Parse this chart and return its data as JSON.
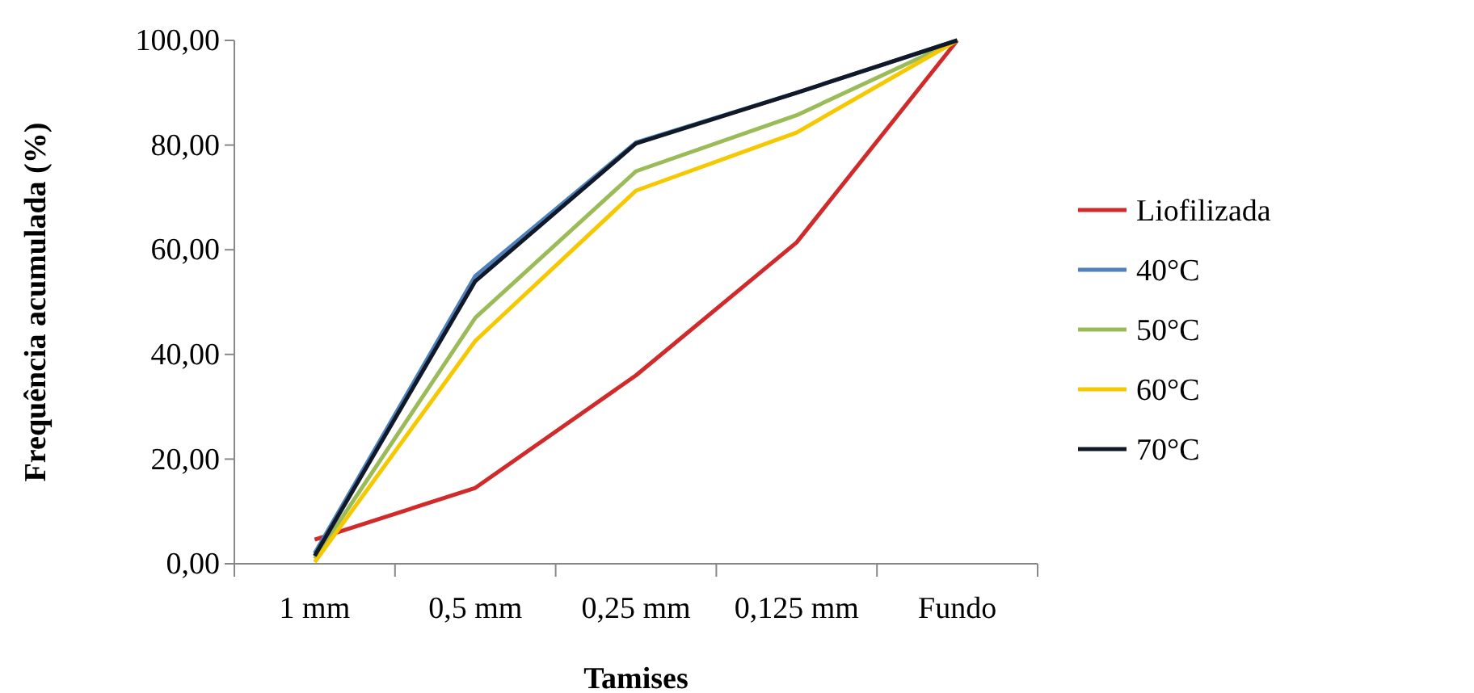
{
  "chart_data": {
    "type": "line",
    "xlabel": "Tamises",
    "ylabel": "Frequência acumulada (%)",
    "categories": [
      "1 mm",
      "0,5 mm",
      "0,25 mm",
      "0,125 mm",
      "Fundo"
    ],
    "series": [
      {
        "name": "Liofilizada",
        "color": "#d02a2a",
        "values": [
          4.6,
          14.5,
          36,
          61.4,
          100
        ]
      },
      {
        "name": "40°C",
        "color": "#4f81bd",
        "values": [
          2,
          55,
          80.5,
          90,
          100
        ]
      },
      {
        "name": "50°C",
        "color": "#9bbb59",
        "values": [
          1,
          47,
          75,
          85.7,
          100
        ]
      },
      {
        "name": "60°C",
        "color": "#f5c800",
        "values": [
          0.3,
          42.6,
          71.3,
          82.4,
          100
        ]
      },
      {
        "name": "70°C",
        "color": "#111827",
        "values": [
          1.5,
          54,
          80.3,
          90,
          100
        ]
      }
    ],
    "ylim": [
      0,
      100
    ],
    "yticks": [
      {
        "value": 0,
        "label": "0,00"
      },
      {
        "value": 20,
        "label": "20,00"
      },
      {
        "value": 40,
        "label": "40,00"
      },
      {
        "value": 60,
        "label": "60,00"
      },
      {
        "value": 80,
        "label": "80,00"
      },
      {
        "value": 100,
        "label": "100,00"
      }
    ],
    "grid": false,
    "legend": "right",
    "marker": "none",
    "line_style": "solid"
  }
}
